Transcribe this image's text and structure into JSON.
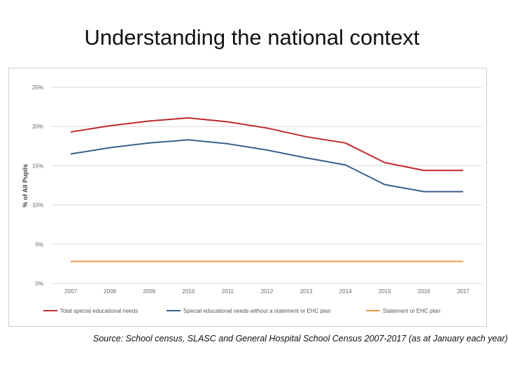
{
  "slide": {
    "title": "Understanding the national context",
    "source": "Source: School census, SLASC and General Hospital School Census 2007-2017 (as at January each year)"
  },
  "chart_data": {
    "type": "line",
    "ylabel": "% of All Pupils",
    "xlabel": "",
    "ylim": [
      0,
      25
    ],
    "yticks": [
      0,
      5,
      10,
      15,
      20,
      25
    ],
    "ytick_labels": [
      "0%",
      "5%",
      "10%",
      "15%",
      "20%",
      "25%"
    ],
    "categories": [
      "2007",
      "2008",
      "2009",
      "2010",
      "2011",
      "2012",
      "2013",
      "2014",
      "2015",
      "2016",
      "2017"
    ],
    "grid": true,
    "legend_position": "bottom",
    "series": [
      {
        "name": "Total special educational needs",
        "color": "#c0282d",
        "values": [
          19.3,
          20.1,
          20.7,
          21.1,
          20.6,
          19.8,
          18.7,
          17.9,
          15.4,
          14.4,
          14.4
        ]
      },
      {
        "name": "Special educational needs without a statement or EHC plan",
        "color": "#3a5e8c",
        "values": [
          16.5,
          17.3,
          17.9,
          18.3,
          17.8,
          17.0,
          16.0,
          15.1,
          12.6,
          11.7,
          11.7
        ]
      },
      {
        "name": "Statement or EHC plan",
        "color": "#ed9a4a",
        "values": [
          2.8,
          2.8,
          2.8,
          2.8,
          2.8,
          2.8,
          2.8,
          2.8,
          2.8,
          2.8,
          2.8
        ]
      }
    ]
  }
}
